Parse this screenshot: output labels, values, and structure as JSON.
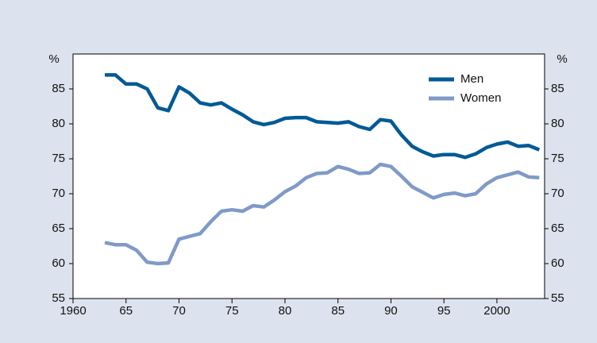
{
  "chart_data": {
    "type": "line",
    "y_label": "%",
    "x": [
      1963,
      1964,
      1965,
      1966,
      1967,
      1968,
      1969,
      1970,
      1971,
      1972,
      1973,
      1974,
      1975,
      1976,
      1977,
      1978,
      1979,
      1980,
      1981,
      1982,
      1983,
      1984,
      1985,
      1986,
      1987,
      1988,
      1989,
      1990,
      1991,
      1992,
      1993,
      1994,
      1995,
      1996,
      1997,
      1998,
      1999,
      2000,
      2001,
      2002,
      2003,
      2004
    ],
    "series": [
      {
        "name": "Men",
        "color": "#005a96",
        "values": [
          87.0,
          87.0,
          85.7,
          85.7,
          85.0,
          82.3,
          81.9,
          85.3,
          84.4,
          83.0,
          82.7,
          83.0,
          82.1,
          81.3,
          80.3,
          79.9,
          80.2,
          80.8,
          80.9,
          80.9,
          80.3,
          80.2,
          80.1,
          80.3,
          79.6,
          79.2,
          80.6,
          80.4,
          78.4,
          76.8,
          76.0,
          75.4,
          75.6,
          75.6,
          75.2,
          75.7,
          76.6,
          77.1,
          77.4,
          76.8,
          76.9,
          76.3
        ]
      },
      {
        "name": "Women",
        "color": "#7f9ac8",
        "values": [
          63.0,
          62.7,
          62.7,
          61.9,
          60.2,
          60.0,
          60.1,
          63.5,
          63.9,
          64.3,
          66.0,
          67.5,
          67.7,
          67.5,
          68.3,
          68.1,
          69.1,
          70.3,
          71.1,
          72.3,
          72.9,
          73.0,
          73.9,
          73.5,
          72.9,
          73.0,
          74.2,
          73.9,
          72.5,
          71.0,
          70.2,
          69.4,
          69.9,
          70.1,
          69.7,
          70.0,
          71.4,
          72.3,
          72.7,
          73.1,
          72.4,
          72.3
        ]
      }
    ],
    "xlim": [
      1960,
      2004.5
    ],
    "xticks": [
      1960,
      {
        "value": 1965,
        "label": "65"
      },
      {
        "value": 1970,
        "label": "70"
      },
      {
        "value": 1975,
        "label": "75"
      },
      {
        "value": 1980,
        "label": "80"
      },
      {
        "value": 1985,
        "label": "85"
      },
      {
        "value": 1990,
        "label": "90"
      },
      {
        "value": 1995,
        "label": "95"
      },
      2000
    ],
    "ylim": [
      55,
      90
    ],
    "yticks": [
      55,
      60,
      65,
      70,
      75,
      80,
      85
    ],
    "legend": "upper right"
  }
}
